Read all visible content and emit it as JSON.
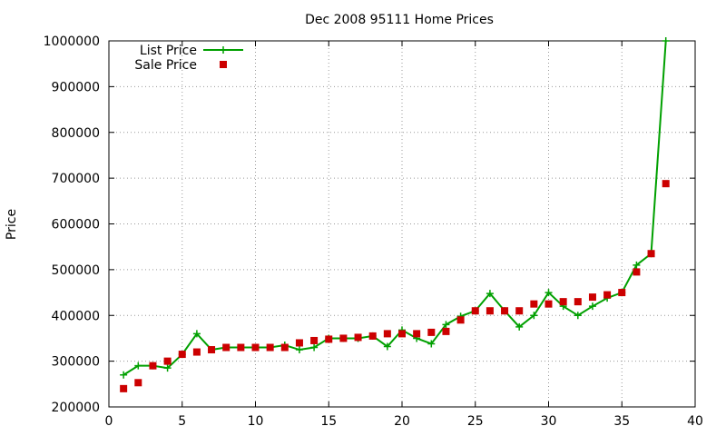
{
  "chart_data": {
    "type": "line",
    "title": "Dec 2008 95111 Home Prices",
    "xlabel": "",
    "ylabel": "Price",
    "xlim": [
      0,
      40
    ],
    "ylim": [
      200000,
      1000000
    ],
    "xticks": [
      0,
      5,
      10,
      15,
      20,
      25,
      30,
      35,
      40
    ],
    "yticks": [
      200000,
      300000,
      400000,
      500000,
      600000,
      700000,
      800000,
      900000,
      1000000
    ],
    "grid": true,
    "legend_position": "top-left",
    "series": [
      {
        "name": "List Price",
        "style": "line-points",
        "marker": "plus",
        "color": "#00a000",
        "points": [
          [
            1,
            270000
          ],
          [
            2,
            290000
          ],
          [
            3,
            290000
          ],
          [
            4,
            285000
          ],
          [
            5,
            315000
          ],
          [
            6,
            360000
          ],
          [
            7,
            325000
          ],
          [
            8,
            330000
          ],
          [
            9,
            330000
          ],
          [
            10,
            330000
          ],
          [
            11,
            330000
          ],
          [
            12,
            335000
          ],
          [
            13,
            325000
          ],
          [
            14,
            330000
          ],
          [
            15,
            350000
          ],
          [
            16,
            350000
          ],
          [
            17,
            350000
          ],
          [
            18,
            355000
          ],
          [
            19,
            332000
          ],
          [
            20,
            368000
          ],
          [
            21,
            350000
          ],
          [
            22,
            338000
          ],
          [
            23,
            380000
          ],
          [
            24,
            398000
          ],
          [
            25,
            410000
          ],
          [
            26,
            448000
          ],
          [
            27,
            410000
          ],
          [
            28,
            375000
          ],
          [
            29,
            400000
          ],
          [
            30,
            450000
          ],
          [
            31,
            420000
          ],
          [
            32,
            400000
          ],
          [
            33,
            420000
          ],
          [
            34,
            438000
          ],
          [
            35,
            450000
          ],
          [
            36,
            510000
          ],
          [
            37,
            535000
          ],
          [
            38,
            1000000
          ]
        ]
      },
      {
        "name": "Sale Price",
        "style": "points",
        "marker": "square",
        "color": "#cc0000",
        "points": [
          [
            1,
            240000
          ],
          [
            2,
            253000
          ],
          [
            3,
            290000
          ],
          [
            4,
            300000
          ],
          [
            5,
            315000
          ],
          [
            6,
            320000
          ],
          [
            7,
            325000
          ],
          [
            8,
            330000
          ],
          [
            9,
            330000
          ],
          [
            10,
            330000
          ],
          [
            11,
            330000
          ],
          [
            12,
            330000
          ],
          [
            13,
            340000
          ],
          [
            14,
            345000
          ],
          [
            15,
            348000
          ],
          [
            16,
            350000
          ],
          [
            17,
            352000
          ],
          [
            18,
            355000
          ],
          [
            19,
            360000
          ],
          [
            20,
            360000
          ],
          [
            21,
            360000
          ],
          [
            22,
            363000
          ],
          [
            23,
            365000
          ],
          [
            24,
            390000
          ],
          [
            25,
            410000
          ],
          [
            26,
            410000
          ],
          [
            27,
            410000
          ],
          [
            28,
            410000
          ],
          [
            29,
            425000
          ],
          [
            30,
            425000
          ],
          [
            31,
            430000
          ],
          [
            32,
            430000
          ],
          [
            33,
            440000
          ],
          [
            34,
            445000
          ],
          [
            35,
            450000
          ],
          [
            36,
            495000
          ],
          [
            37,
            535000
          ],
          [
            38,
            688000
          ]
        ]
      }
    ]
  }
}
